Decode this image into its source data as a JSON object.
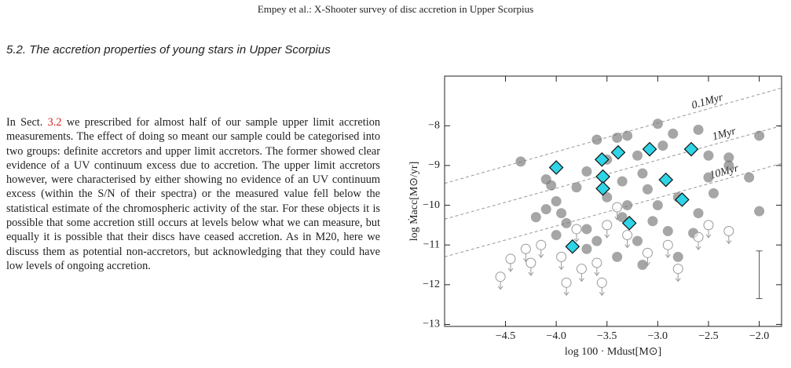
{
  "header": "Empey et al.: X-Shooter survey of disc accretion in Upper Scorpius",
  "section": {
    "number": "5.2.",
    "title": "The accretion properties of young stars in Upper Scorpius"
  },
  "paragraph": [
    "In Sect. ",
    "3.2",
    " we prescribed for almost half of our sample upper limit accretion measurements. The effect of doing so meant our sample could be categorised into two groups: definite accretors and upper limit accretors. The former showed clear evidence of a UV continuum excess due to accretion. The upper limit accretors however, were characterised by either showing no evidence of an UV continuum excess (within the S/N of their spectra) or the measured value fell below the statistical estimate of the chromospheric activity of the star. For these objects it is possible that some accretion still occurs at levels below what we can measure, but equally it is possible that their discs have ceased accretion. As in M20, here we discuss them as potential non-accretors, but acknowledging that they could have low levels of ongoing accretion."
  ],
  "chart_data": {
    "type": "scatter",
    "xlabel": "log 100 · Mdust[M⊙]",
    "ylabel": "log Ṁacc[M⊙/yr]",
    "xlim": [
      -5.1,
      -1.78
    ],
    "ylim": [
      -13.05,
      -6.75
    ],
    "xticks": [
      {
        "value": -4.5,
        "label": "−4.5"
      },
      {
        "value": -4.0,
        "label": "−4.0"
      },
      {
        "value": -3.5,
        "label": "−3.5"
      },
      {
        "value": -3.0,
        "label": "−3.0"
      },
      {
        "value": -2.5,
        "label": "−2.5"
      },
      {
        "value": -2.0,
        "label": "−2.0"
      }
    ],
    "yticks": [
      {
        "value": -8,
        "label": "−8"
      },
      {
        "value": -9,
        "label": "−9"
      },
      {
        "value": -10,
        "label": "−10"
      },
      {
        "value": -11,
        "label": "−11"
      },
      {
        "value": -12,
        "label": "−12"
      },
      {
        "value": -13,
        "label": "−13"
      }
    ],
    "lines": [
      {
        "label": "0.1Myr",
        "color": "#999999",
        "x": [
          -5.1,
          -1.78
        ],
        "values": [
          -9.45,
          -7.05
        ]
      },
      {
        "label": "1Myr",
        "color": "#999999",
        "x": [
          -5.1,
          -1.78
        ],
        "values": [
          -10.35,
          -8.0
        ]
      },
      {
        "label": "10Myr",
        "color": "#999999",
        "x": [
          -5.1,
          -1.78
        ],
        "values": [
          -11.3,
          -8.95
        ]
      }
    ],
    "series": [
      {
        "marker": "filled",
        "color": "#777777",
        "x": [
          -4.35,
          -4.1,
          -4.05,
          -4.0,
          -4.1,
          -3.95,
          -4.0,
          -3.8,
          -3.7,
          -3.6,
          -3.5,
          -3.4,
          -3.3,
          -3.2,
          -3.15,
          -3.0,
          -2.95,
          -2.85,
          -2.6,
          -2.5,
          -2.3,
          -2.0,
          -2.3,
          -2.1,
          -2.5,
          -3.35,
          -3.5,
          -3.3,
          -3.1,
          -3.0,
          -2.8,
          -2.6,
          -2.45,
          -2.0,
          -3.7,
          -3.6,
          -3.35,
          -3.2,
          -3.05,
          -2.9,
          -2.8,
          -3.4,
          -3.15,
          -3.7,
          -4.2,
          -3.9,
          -2.65
        ],
        "values": [
          -8.9,
          -9.35,
          -9.5,
          -9.9,
          -10.1,
          -10.2,
          -10.75,
          -9.55,
          -9.15,
          -8.35,
          -8.85,
          -8.3,
          -8.25,
          -8.75,
          -9.2,
          -7.95,
          -8.5,
          -8.2,
          -8.1,
          -8.75,
          -8.8,
          -8.25,
          -9.0,
          -9.3,
          -9.3,
          -9.4,
          -9.8,
          -10.0,
          -9.6,
          -10.0,
          -9.8,
          -10.2,
          -9.7,
          -10.15,
          -10.6,
          -10.9,
          -10.3,
          -10.9,
          -10.4,
          -10.65,
          -11.3,
          -11.3,
          -11.5,
          -11.1,
          -10.3,
          -10.45,
          -10.7
        ]
      },
      {
        "marker": "open",
        "color": "#999999",
        "x": [
          -4.55,
          -4.45,
          -4.3,
          -4.25,
          -4.15,
          -3.95,
          -3.75,
          -3.6,
          -3.55,
          -3.8,
          -3.5,
          -3.4,
          -3.3,
          -3.1,
          -2.9,
          -2.8,
          -2.6,
          -2.5,
          -2.3,
          -3.9
        ],
        "values": [
          -11.8,
          -11.35,
          -11.1,
          -11.45,
          -11.0,
          -11.3,
          -11.6,
          -11.45,
          -11.95,
          -10.6,
          -10.5,
          -10.05,
          -10.75,
          -11.2,
          -11.0,
          -11.6,
          -10.8,
          -10.5,
          -10.65,
          -11.95
        ]
      },
      {
        "marker": "diamond",
        "color": "#2fd4e6",
        "x": [
          -4.0,
          -3.55,
          -3.39,
          -3.08,
          -2.67,
          -3.54,
          -2.92,
          -3.54,
          -2.76,
          -3.28,
          -3.84
        ],
        "values": [
          -9.05,
          -8.85,
          -8.67,
          -8.59,
          -8.59,
          -9.28,
          -9.36,
          -9.58,
          -9.86,
          -10.45,
          -11.04
        ]
      }
    ],
    "error_bar": {
      "x": -2.0,
      "value": -11.75,
      "error": 0.6
    }
  }
}
